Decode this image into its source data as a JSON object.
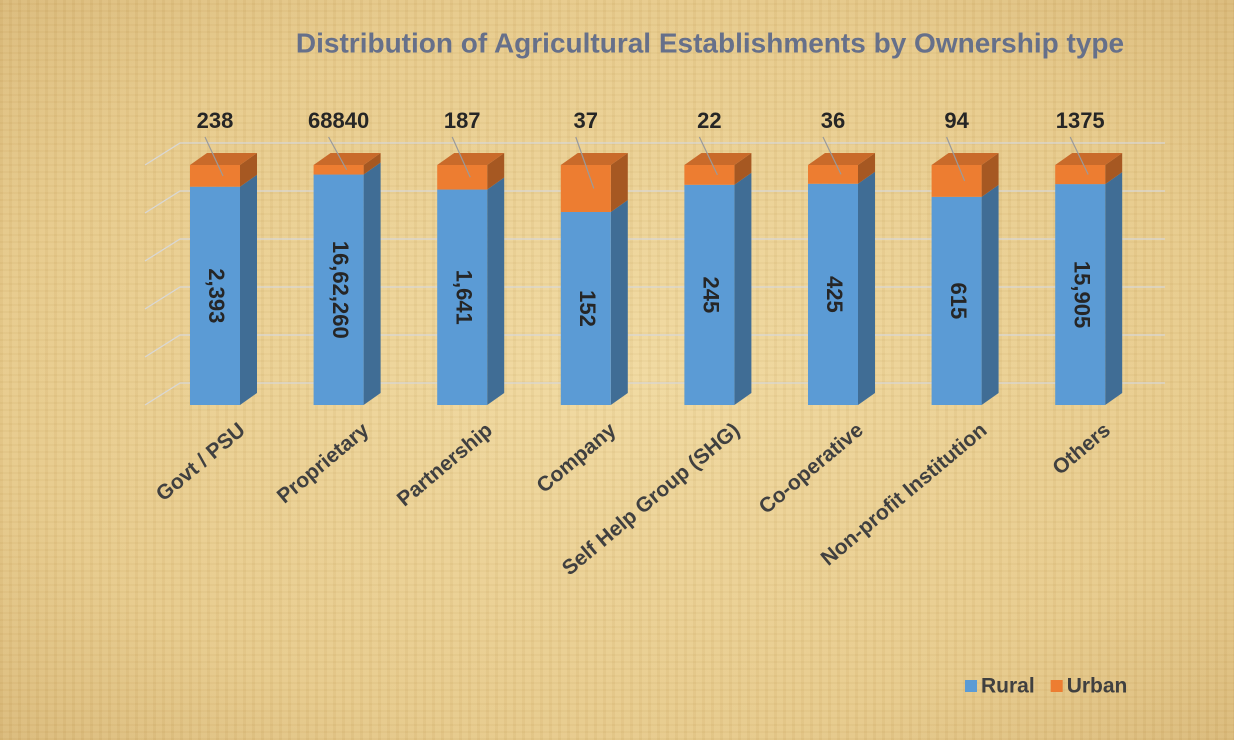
{
  "chart_data": {
    "type": "stacked_bar_100",
    "title": "Distribution of Agricultural Establishments by Ownership type",
    "categories": [
      "Govt / PSU",
      "Proprietary",
      "Partnership",
      "Company",
      "Self Help Group (SHG)",
      "Co-operative",
      "Non-profit Institution",
      "Others"
    ],
    "series": [
      {
        "name": "Rural",
        "color": "#5b9bd5",
        "values": [
          2393,
          1662260,
          1641,
          152,
          245,
          425,
          615,
          15905
        ],
        "value_labels": [
          "2,393",
          "16,62,260",
          "1,641",
          "152",
          "245",
          "425",
          "615",
          "15,905"
        ]
      },
      {
        "name": "Urban",
        "color": "#ed7d31",
        "values": [
          238,
          68840,
          187,
          37,
          22,
          36,
          94,
          1375
        ]
      }
    ],
    "legend": "bottom-right"
  }
}
